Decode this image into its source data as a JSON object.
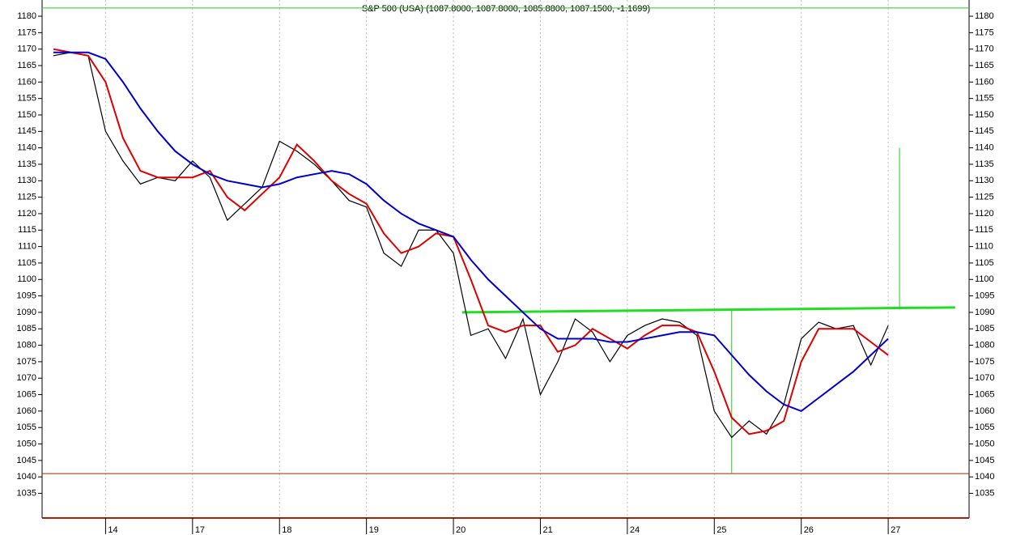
{
  "chart_data": {
    "type": "line",
    "title": "S&P 500 (USA) (1087.8000, 1087.8000, 1085.8800, 1087.1500, -1.1699)",
    "x": [
      0.4,
      0.6,
      0.8,
      1.0,
      1.2,
      1.4,
      1.6,
      1.8,
      2.0,
      2.2,
      2.4,
      2.6,
      2.8,
      3.0,
      3.2,
      3.4,
      3.6,
      3.8,
      4.0,
      4.2,
      4.4,
      4.6,
      4.8,
      5.0,
      5.2,
      5.4,
      5.6,
      5.8,
      6.0,
      6.2,
      6.4,
      6.6,
      6.8,
      7.0,
      7.2,
      7.4,
      7.6,
      7.8,
      8.0,
      8.2,
      8.4,
      8.6,
      8.8,
      9.0,
      9.2,
      9.4,
      9.6,
      9.8,
      10.0
    ],
    "series": [
      {
        "color": "#000000",
        "values": [
          1168,
          1169,
          1168,
          1145,
          1136,
          1129,
          1131,
          1130,
          1136,
          1131,
          1118,
          1123,
          1128,
          1142,
          1139,
          1135,
          1130,
          1124,
          1122,
          1108,
          1104,
          1115,
          1115,
          1108,
          1083,
          1085,
          1076,
          1088,
          1065,
          1075,
          1088,
          1084,
          1075,
          1083,
          1086,
          1088,
          1087,
          1083,
          1060,
          1052,
          1057,
          1053,
          1062,
          1082,
          1087,
          1085,
          1086,
          1074,
          1086
        ]
      },
      {
        "color": "#dd0000",
        "values": [
          1170,
          1169,
          1168,
          1160,
          1143,
          1133,
          1131,
          1131,
          1131,
          1133,
          1125,
          1121,
          1126,
          1131,
          1141,
          1136,
          1130,
          1126,
          1123,
          1114,
          1108,
          1110,
          1114,
          1113,
          1100,
          1086,
          1084,
          1086,
          1086,
          1078,
          1080,
          1085,
          1082,
          1079,
          1083,
          1086,
          1086,
          1084,
          1072,
          1058,
          1053,
          1054,
          1057,
          1075,
          1085,
          1085,
          1085,
          1081,
          1077
        ]
      },
      {
        "color": "#0000cc",
        "values": [
          1169,
          1169,
          1169,
          1167,
          1160,
          1152,
          1145,
          1139,
          1135,
          1132,
          1130,
          1129,
          1128,
          1129,
          1131,
          1132,
          1133,
          1132,
          1129,
          1124,
          1120,
          1117,
          1115,
          1113,
          1106,
          1100,
          1095,
          1090,
          1085,
          1082,
          1082,
          1082,
          1081,
          1081,
          1082,
          1083,
          1084,
          1084,
          1083,
          1077,
          1071,
          1066,
          1062,
          1060,
          1064,
          1068,
          1072,
          1077,
          1082
        ]
      }
    ],
    "lines": [
      {
        "color": "#22dd22",
        "x": [
          5.1,
          10.77
        ],
        "y": [
          1090,
          1091.5
        ]
      },
      {
        "color": "#22cc22",
        "x": [
          0.27,
          10.93
        ],
        "y": [
          1182.5,
          1182.5
        ]
      },
      {
        "color": "#aa2200",
        "x": [
          0.27,
          10.93
        ],
        "y": [
          1041,
          1041
        ]
      },
      {
        "color": "#22cc22",
        "x": [
          8.2,
          8.2
        ],
        "y": [
          1041,
          1090.5
        ]
      },
      {
        "color": "#22cc22",
        "x": [
          10.13,
          10.13
        ],
        "y": [
          1091.5,
          1140
        ]
      }
    ],
    "xlim": [
      0.27,
      10.93
    ],
    "ylim": [
      1027.5,
      1183.7
    ],
    "xticks": [
      {
        "value": 1,
        "label": "14"
      },
      {
        "value": 2,
        "label": "17"
      },
      {
        "value": 3,
        "label": "18"
      },
      {
        "value": 4,
        "label": "19"
      },
      {
        "value": 5,
        "label": "20"
      },
      {
        "value": 6,
        "label": "21"
      },
      {
        "value": 7,
        "label": "24"
      },
      {
        "value": 8,
        "label": "25"
      },
      {
        "value": 9,
        "label": "26"
      },
      {
        "value": 10,
        "label": "27"
      }
    ],
    "yticks": [
      1035,
      1040,
      1045,
      1050,
      1055,
      1060,
      1065,
      1070,
      1075,
      1080,
      1085,
      1090,
      1095,
      1100,
      1105,
      1110,
      1115,
      1120,
      1125,
      1130,
      1135,
      1140,
      1145,
      1150,
      1155,
      1160,
      1165,
      1170,
      1175,
      1180
    ],
    "grid": true
  }
}
